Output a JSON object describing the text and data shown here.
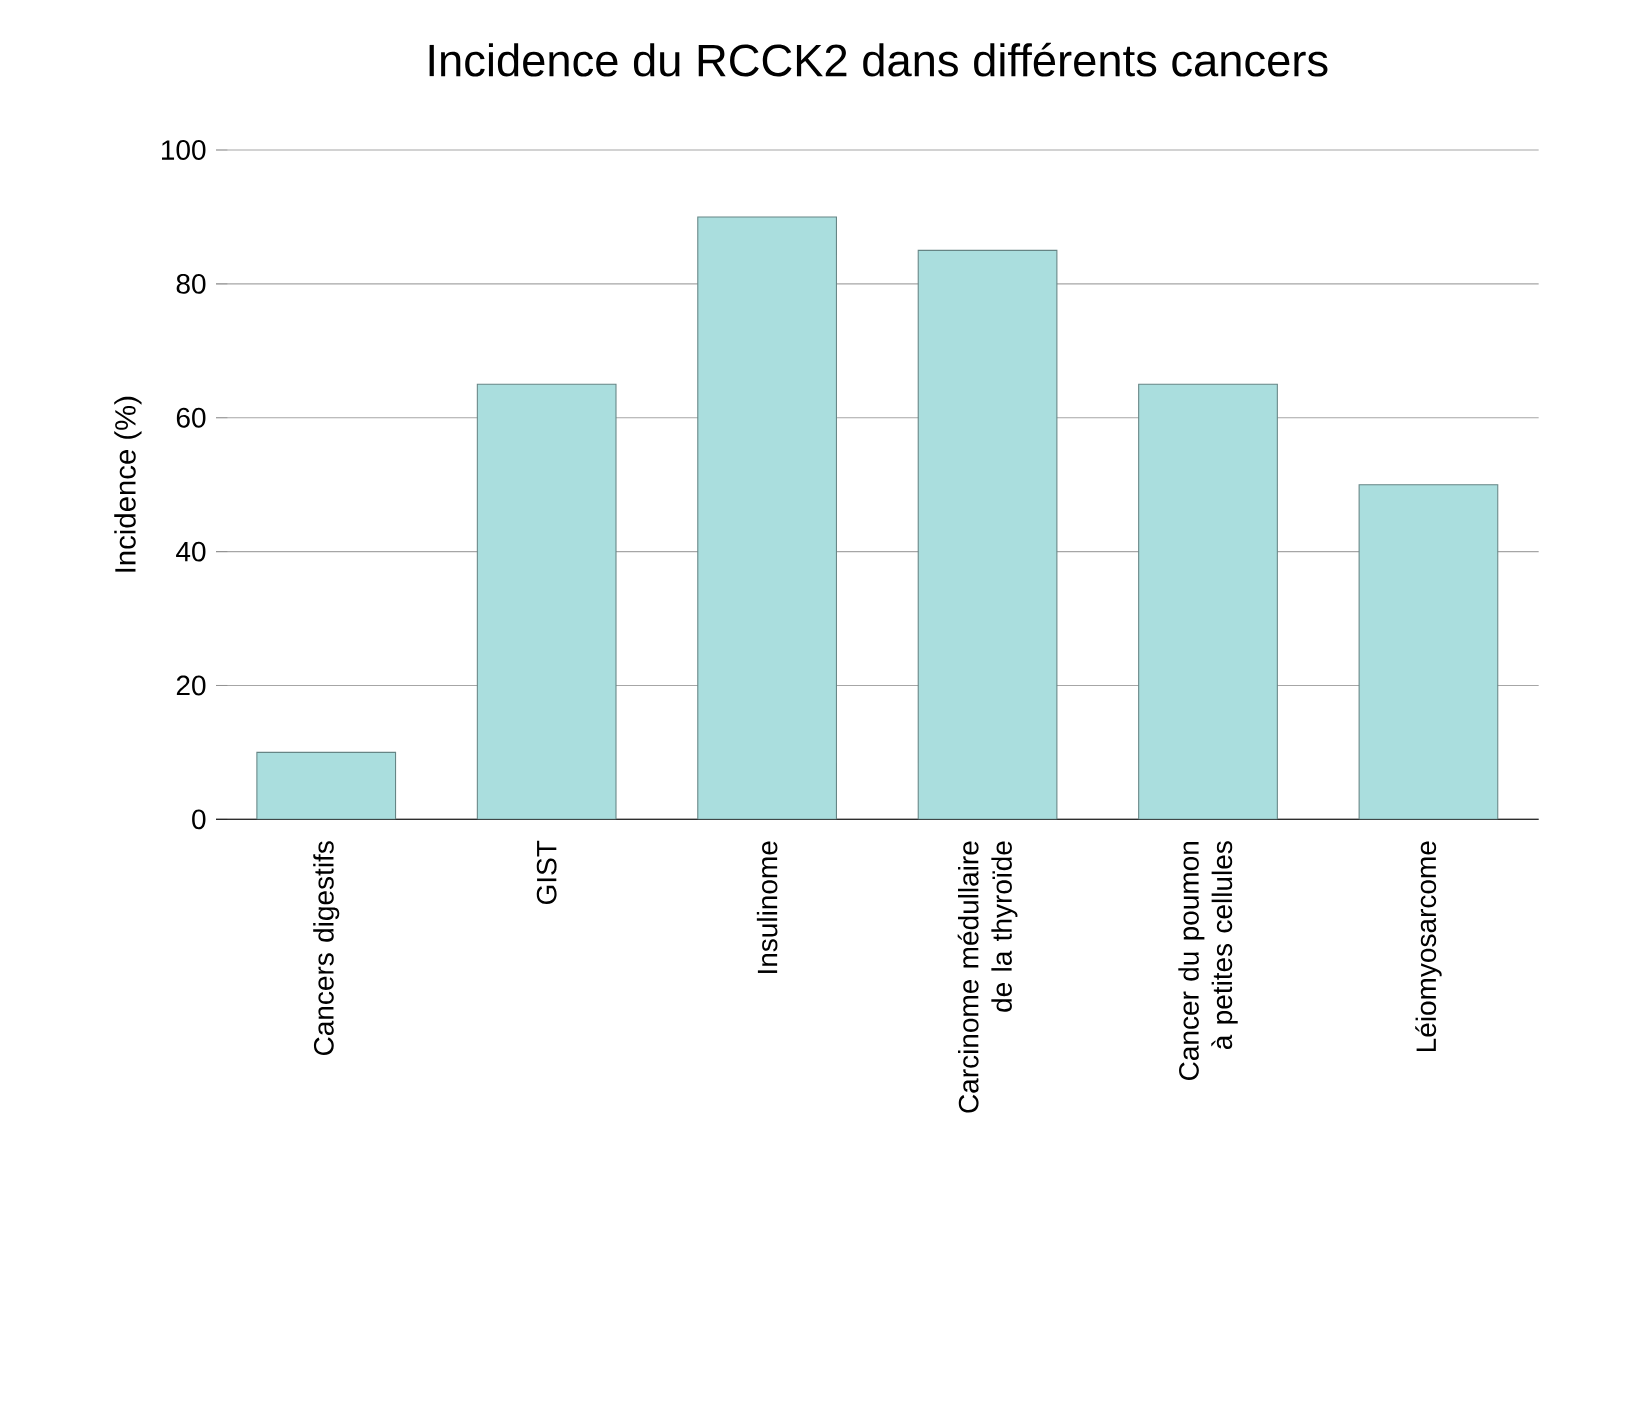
{
  "chart_data": {
    "type": "bar",
    "title": "Incidence du RCCK2 dans différents cancers",
    "ylabel": "Incidence (%)",
    "categories": [
      "Cancers digestifs",
      "GIST",
      "Insulinome",
      "Carcinome médullaire de la thyroïde",
      "Cancer du poumon à petites cellules",
      "Léiomyosarcome"
    ],
    "values": [
      10,
      65,
      90,
      85,
      65,
      50
    ],
    "color": "#aadede",
    "ylim": [
      0,
      100
    ],
    "yticks": [
      0,
      20,
      40,
      60,
      80,
      100
    ],
    "grid": "y"
  }
}
